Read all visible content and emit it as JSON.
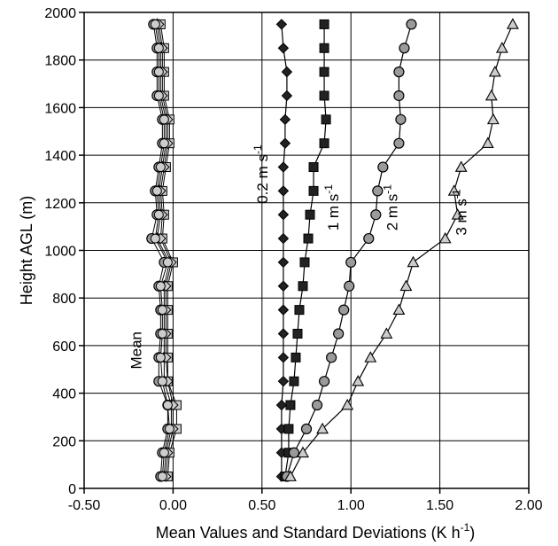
{
  "chart_data": {
    "type": "line",
    "title": "",
    "xlabel": "Mean Values and Standard Deviations (K h",
    "xlabel_sup": "-1",
    "xlabel_tail": ")",
    "ylabel": "Height AGL (m)",
    "xlim": [
      -0.5,
      2.0
    ],
    "ylim": [
      0,
      2000
    ],
    "x_ticks": [
      "-0.50",
      "0.00",
      "0.50",
      "1.00",
      "1.50",
      "2.00"
    ],
    "x_tick_values": [
      -0.5,
      0.0,
      0.5,
      1.0,
      1.5,
      2.0
    ],
    "y_ticks": [
      "0",
      "200",
      "400",
      "600",
      "800",
      "1000",
      "1200",
      "1400",
      "1600",
      "1800",
      "2000"
    ],
    "y_tick_values": [
      0,
      200,
      400,
      600,
      800,
      1000,
      1200,
      1400,
      1600,
      1800,
      2000
    ],
    "grid": true,
    "heights": [
      50,
      150,
      250,
      350,
      450,
      550,
      650,
      750,
      850,
      950,
      1050,
      1150,
      1250,
      1350,
      1450,
      1550,
      1650,
      1750,
      1850,
      1950
    ],
    "series": [
      {
        "label_main": "0.2 m s",
        "label_sup": "-1",
        "marker": "diamond",
        "values": [
          0.61,
          0.61,
          0.61,
          0.61,
          0.62,
          0.62,
          0.62,
          0.62,
          0.62,
          0.62,
          0.62,
          0.62,
          0.62,
          0.62,
          0.63,
          0.63,
          0.64,
          0.64,
          0.62,
          0.61
        ]
      },
      {
        "label_main": "1 m s",
        "label_sup": "-1",
        "marker": "square",
        "values": [
          0.63,
          0.65,
          0.65,
          0.66,
          0.68,
          0.69,
          0.7,
          0.71,
          0.73,
          0.74,
          0.76,
          0.77,
          0.79,
          0.79,
          0.85,
          0.86,
          0.85,
          0.85,
          0.85,
          0.85
        ]
      },
      {
        "label_main": "2 m s",
        "label_sup": "-1",
        "marker": "circle",
        "values": [
          0.64,
          0.68,
          0.75,
          0.81,
          0.85,
          0.89,
          0.93,
          0.96,
          0.99,
          1.0,
          1.1,
          1.14,
          1.15,
          1.18,
          1.27,
          1.28,
          1.27,
          1.27,
          1.3,
          1.34
        ]
      },
      {
        "label_main": "3 m s",
        "label_sup": "-1",
        "marker": "triangle",
        "values": [
          0.66,
          0.73,
          0.84,
          0.98,
          1.04,
          1.11,
          1.2,
          1.27,
          1.31,
          1.35,
          1.53,
          1.6,
          1.58,
          1.62,
          1.77,
          1.8,
          1.79,
          1.81,
          1.85,
          1.91
        ]
      },
      {
        "label_main": "Mean",
        "marker": "mixed",
        "values": [
          -0.05,
          -0.04,
          -0.01,
          -0.01,
          -0.05,
          -0.05,
          -0.05,
          -0.05,
          -0.05,
          -0.02,
          -0.09,
          -0.07,
          -0.08,
          -0.06,
          -0.04,
          -0.04,
          -0.07,
          -0.07,
          -0.07,
          -0.09
        ]
      }
    ],
    "mean_marker_spread": [
      [
        0.0,
        0.02,
        -0.02,
        0.01,
        -0.01
      ],
      [
        0.0,
        0.02,
        -0.02,
        0.01,
        -0.01
      ],
      [
        0.0,
        0.03,
        -0.02,
        0.01,
        -0.01
      ],
      [
        0.0,
        0.03,
        -0.02,
        0.01,
        -0.02
      ],
      [
        0.0,
        0.02,
        -0.03,
        0.02,
        -0.01
      ],
      [
        0.0,
        0.02,
        -0.03,
        0.01,
        -0.02
      ],
      [
        0.0,
        0.02,
        -0.02,
        0.01,
        -0.01
      ],
      [
        0.0,
        0.02,
        -0.02,
        0.01,
        -0.01
      ],
      [
        0.0,
        0.02,
        -0.03,
        0.01,
        -0.02
      ],
      [
        0.0,
        0.02,
        -0.03,
        0.01,
        -0.01
      ],
      [
        0.0,
        0.03,
        -0.03,
        0.02,
        -0.01
      ],
      [
        0.0,
        0.02,
        -0.02,
        0.01,
        -0.01
      ],
      [
        0.0,
        0.02,
        -0.02,
        0.01,
        -0.01
      ],
      [
        0.0,
        0.02,
        -0.02,
        0.01,
        -0.01
      ],
      [
        0.0,
        0.02,
        -0.02,
        0.01,
        -0.01
      ],
      [
        0.0,
        0.02,
        -0.02,
        0.01,
        -0.01
      ],
      [
        0.0,
        0.02,
        -0.02,
        0.01,
        -0.01
      ],
      [
        0.0,
        0.02,
        -0.02,
        0.01,
        -0.01
      ],
      [
        0.0,
        0.02,
        -0.02,
        0.01,
        -0.01
      ],
      [
        0.0,
        0.02,
        -0.02,
        0.01,
        -0.01
      ]
    ],
    "colors": {
      "axis": "#000000",
      "grid": "#000000",
      "line": "#000000",
      "marker_fill_dark": "#222222",
      "marker_fill_gray": "#9a9a9a",
      "marker_fill_light": "#cccccc"
    }
  }
}
